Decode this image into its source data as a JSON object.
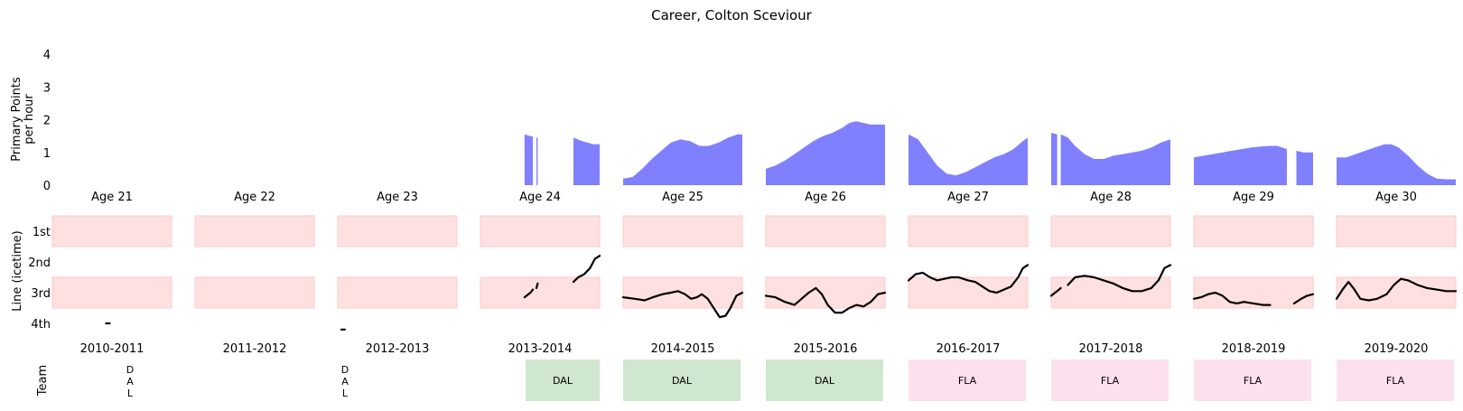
{
  "chart_data": {
    "type": "area",
    "title": "Career, Colton Sceviour",
    "colors": {
      "points_fill": "#8080ff",
      "line_band": "#ffe0e0",
      "line_band_edge": "#ffc8c8",
      "team_dal": "#cfe6cf",
      "team_fla": "#fde0ee",
      "line_trace": "#000000"
    },
    "points_panel": {
      "ylabel": "Primary Points\nper hour",
      "ylim": [
        0,
        4
      ],
      "yticks": [
        "0",
        "1",
        "2",
        "3",
        "4"
      ]
    },
    "line_panel": {
      "ylabel": "Line (icetime)",
      "yticks": [
        "1st",
        "2nd",
        "3rd",
        "4th"
      ]
    },
    "team_panel": {
      "ylabel": "Team"
    },
    "seasons": [
      {
        "age": "Age 21",
        "season": "2010-2011",
        "team": "D\nA\nL",
        "team_style": "vertical",
        "points": [],
        "line": [
          [
            0.45,
            4.0
          ],
          [
            0.48,
            4.0
          ]
        ]
      },
      {
        "age": "Age 22",
        "season": "2011-2012",
        "team": "",
        "team_style": "none",
        "points": [],
        "line": []
      },
      {
        "age": "Age 23",
        "season": "2012-2013",
        "team": "D\nA\nL",
        "team_style": "vertical",
        "points": [],
        "line": [
          [
            0.03,
            4.2
          ],
          [
            0.06,
            4.2
          ]
        ]
      },
      {
        "age": "Age 24",
        "season": "2013-2014",
        "team": "DAL",
        "team_style": "box",
        "points": [
          [
            0.37,
            1.55
          ],
          [
            0.42,
            1.5
          ],
          [
            0.44,
            1.48
          ],
          null,
          [
            0.47,
            1.45
          ],
          [
            0.48,
            1.45
          ],
          null,
          [
            0.78,
            1.45
          ],
          [
            0.85,
            1.35
          ],
          [
            0.95,
            1.25
          ],
          [
            1.0,
            1.25
          ]
        ],
        "line": [
          [
            0.37,
            3.15
          ],
          [
            0.42,
            3.0
          ],
          [
            0.44,
            2.9
          ],
          null,
          [
            0.47,
            2.85
          ],
          [
            0.48,
            2.7
          ],
          null,
          [
            0.78,
            2.65
          ],
          [
            0.82,
            2.5
          ],
          [
            0.87,
            2.4
          ],
          [
            0.92,
            2.2
          ],
          [
            0.96,
            1.9
          ],
          [
            1.0,
            1.8
          ]
        ]
      },
      {
        "age": "Age 25",
        "season": "2014-2015",
        "team": "DAL",
        "team_style": "box",
        "points": [
          [
            0.0,
            0.2
          ],
          [
            0.08,
            0.25
          ],
          [
            0.16,
            0.5
          ],
          [
            0.24,
            0.8
          ],
          [
            0.32,
            1.05
          ],
          [
            0.4,
            1.3
          ],
          [
            0.48,
            1.4
          ],
          [
            0.56,
            1.35
          ],
          [
            0.64,
            1.2
          ],
          [
            0.72,
            1.2
          ],
          [
            0.8,
            1.3
          ],
          [
            0.88,
            1.45
          ],
          [
            0.96,
            1.55
          ],
          [
            1.0,
            1.55
          ]
        ],
        "line": [
          [
            0.0,
            3.15
          ],
          [
            0.1,
            3.2
          ],
          [
            0.18,
            3.25
          ],
          [
            0.25,
            3.15
          ],
          [
            0.33,
            3.05
          ],
          [
            0.4,
            3.0
          ],
          [
            0.46,
            2.95
          ],
          [
            0.52,
            3.05
          ],
          [
            0.57,
            3.2
          ],
          [
            0.62,
            3.15
          ],
          [
            0.66,
            3.05
          ],
          [
            0.71,
            3.2
          ],
          [
            0.76,
            3.5
          ],
          [
            0.81,
            3.8
          ],
          [
            0.86,
            3.75
          ],
          [
            0.9,
            3.5
          ],
          [
            0.95,
            3.1
          ],
          [
            1.0,
            3.0
          ]
        ]
      },
      {
        "age": "Age 26",
        "season": "2015-2016",
        "team": "DAL",
        "team_style": "box",
        "points": [
          [
            0.0,
            0.5
          ],
          [
            0.08,
            0.6
          ],
          [
            0.16,
            0.75
          ],
          [
            0.24,
            0.95
          ],
          [
            0.32,
            1.15
          ],
          [
            0.4,
            1.35
          ],
          [
            0.48,
            1.5
          ],
          [
            0.56,
            1.6
          ],
          [
            0.64,
            1.75
          ],
          [
            0.7,
            1.9
          ],
          [
            0.76,
            1.95
          ],
          [
            0.82,
            1.9
          ],
          [
            0.88,
            1.85
          ],
          [
            0.96,
            1.85
          ],
          [
            1.0,
            1.85
          ]
        ],
        "line": [
          [
            0.0,
            3.1
          ],
          [
            0.08,
            3.15
          ],
          [
            0.16,
            3.3
          ],
          [
            0.24,
            3.4
          ],
          [
            0.3,
            3.2
          ],
          [
            0.36,
            3.0
          ],
          [
            0.42,
            2.85
          ],
          [
            0.47,
            3.05
          ],
          [
            0.52,
            3.4
          ],
          [
            0.58,
            3.65
          ],
          [
            0.64,
            3.65
          ],
          [
            0.7,
            3.5
          ],
          [
            0.76,
            3.4
          ],
          [
            0.82,
            3.45
          ],
          [
            0.88,
            3.3
          ],
          [
            0.94,
            3.05
          ],
          [
            1.0,
            3.0
          ]
        ]
      },
      {
        "age": "Age 27",
        "season": "2016-2017",
        "team": "FLA",
        "team_style": "box",
        "points": [
          [
            0.0,
            1.55
          ],
          [
            0.08,
            1.4
          ],
          [
            0.16,
            1.0
          ],
          [
            0.24,
            0.6
          ],
          [
            0.32,
            0.35
          ],
          [
            0.4,
            0.3
          ],
          [
            0.48,
            0.4
          ],
          [
            0.56,
            0.55
          ],
          [
            0.64,
            0.7
          ],
          [
            0.72,
            0.85
          ],
          [
            0.8,
            0.95
          ],
          [
            0.88,
            1.1
          ],
          [
            0.96,
            1.35
          ],
          [
            1.0,
            1.45
          ]
        ],
        "line": [
          [
            0.0,
            2.6
          ],
          [
            0.06,
            2.4
          ],
          [
            0.12,
            2.35
          ],
          [
            0.18,
            2.5
          ],
          [
            0.24,
            2.6
          ],
          [
            0.3,
            2.55
          ],
          [
            0.36,
            2.5
          ],
          [
            0.42,
            2.5
          ],
          [
            0.5,
            2.6
          ],
          [
            0.56,
            2.65
          ],
          [
            0.62,
            2.8
          ],
          [
            0.68,
            2.95
          ],
          [
            0.74,
            3.0
          ],
          [
            0.8,
            2.9
          ],
          [
            0.86,
            2.8
          ],
          [
            0.92,
            2.5
          ],
          [
            0.96,
            2.2
          ],
          [
            1.0,
            2.1
          ]
        ]
      },
      {
        "age": "Age 28",
        "season": "2017-2018",
        "team": "FLA",
        "team_style": "box",
        "points": [
          [
            0.0,
            1.6
          ],
          [
            0.05,
            1.55
          ],
          null,
          [
            0.08,
            1.55
          ],
          [
            0.14,
            1.45
          ],
          [
            0.2,
            1.2
          ],
          [
            0.28,
            0.95
          ],
          [
            0.36,
            0.8
          ],
          [
            0.44,
            0.8
          ],
          [
            0.52,
            0.9
          ],
          [
            0.6,
            0.95
          ],
          [
            0.68,
            1.0
          ],
          [
            0.76,
            1.05
          ],
          [
            0.84,
            1.15
          ],
          [
            0.92,
            1.3
          ],
          [
            1.0,
            1.4
          ]
        ],
        "line": [
          [
            0.0,
            3.1
          ],
          [
            0.05,
            2.95
          ],
          [
            0.08,
            2.85
          ],
          null,
          [
            0.14,
            2.75
          ],
          [
            0.2,
            2.5
          ],
          [
            0.28,
            2.45
          ],
          [
            0.36,
            2.5
          ],
          [
            0.44,
            2.6
          ],
          [
            0.52,
            2.7
          ],
          [
            0.6,
            2.85
          ],
          [
            0.68,
            2.95
          ],
          [
            0.76,
            2.95
          ],
          [
            0.84,
            2.85
          ],
          [
            0.9,
            2.6
          ],
          [
            0.95,
            2.2
          ],
          [
            1.0,
            2.1
          ]
        ]
      },
      {
        "age": "Age 29",
        "season": "2018-2019",
        "team": "FLA",
        "team_style": "box",
        "points": [
          [
            0.0,
            0.85
          ],
          [
            0.08,
            0.9
          ],
          [
            0.16,
            0.95
          ],
          [
            0.24,
            1.0
          ],
          [
            0.32,
            1.05
          ],
          [
            0.4,
            1.1
          ],
          [
            0.48,
            1.15
          ],
          [
            0.56,
            1.18
          ],
          [
            0.64,
            1.2
          ],
          [
            0.7,
            1.2
          ],
          [
            0.74,
            1.15
          ],
          [
            0.78,
            1.1
          ],
          null,
          [
            0.86,
            1.05
          ],
          [
            0.92,
            1.0
          ],
          [
            1.0,
            1.0
          ]
        ],
        "line": [
          [
            0.0,
            3.2
          ],
          [
            0.06,
            3.15
          ],
          [
            0.12,
            3.05
          ],
          [
            0.18,
            3.0
          ],
          [
            0.24,
            3.1
          ],
          [
            0.3,
            3.3
          ],
          [
            0.36,
            3.35
          ],
          [
            0.42,
            3.3
          ],
          [
            0.5,
            3.35
          ],
          [
            0.58,
            3.4
          ],
          [
            0.64,
            3.4
          ],
          null,
          [
            0.84,
            3.35
          ],
          [
            0.9,
            3.2
          ],
          [
            0.95,
            3.1
          ],
          [
            1.0,
            3.05
          ]
        ]
      },
      {
        "age": "Age 30",
        "season": "2019-2020",
        "team": "FLA",
        "team_style": "box",
        "points": [
          [
            0.0,
            0.85
          ],
          [
            0.08,
            0.85
          ],
          [
            0.16,
            0.95
          ],
          [
            0.24,
            1.05
          ],
          [
            0.32,
            1.15
          ],
          [
            0.4,
            1.25
          ],
          [
            0.46,
            1.25
          ],
          [
            0.52,
            1.15
          ],
          [
            0.6,
            0.9
          ],
          [
            0.68,
            0.6
          ],
          [
            0.76,
            0.35
          ],
          [
            0.84,
            0.2
          ],
          [
            0.92,
            0.18
          ],
          [
            1.0,
            0.18
          ]
        ],
        "line": [
          [
            0.0,
            3.2
          ],
          [
            0.05,
            2.9
          ],
          [
            0.1,
            2.65
          ],
          [
            0.15,
            2.9
          ],
          [
            0.2,
            3.2
          ],
          [
            0.27,
            3.25
          ],
          [
            0.34,
            3.2
          ],
          [
            0.42,
            3.05
          ],
          [
            0.48,
            2.75
          ],
          [
            0.54,
            2.55
          ],
          [
            0.6,
            2.6
          ],
          [
            0.68,
            2.75
          ],
          [
            0.76,
            2.85
          ],
          [
            0.84,
            2.9
          ],
          [
            0.92,
            2.95
          ],
          [
            1.0,
            2.95
          ]
        ]
      }
    ]
  }
}
